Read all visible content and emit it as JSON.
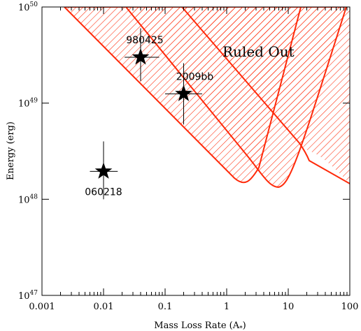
{
  "chart_data": {
    "type": "scatter",
    "xlabel": "Mass Loss Rate (A",
    "xlabel_sub": "*",
    "xlabel_end": ")",
    "ylabel": "Energy (erg)",
    "xscale": "log",
    "yscale": "log",
    "xlim": [
      0.001,
      100
    ],
    "ylim": [
      1e+47,
      1e+50
    ],
    "x_ticks": [
      {
        "value": 0.001,
        "label": "0.001"
      },
      {
        "value": 0.01,
        "label": "0.01"
      },
      {
        "value": 0.1,
        "label": "0.1"
      },
      {
        "value": 1,
        "label": "1"
      },
      {
        "value": 10,
        "label": "10"
      },
      {
        "value": 100,
        "label": "100"
      }
    ],
    "y_ticks": [
      {
        "value": 1e+47,
        "base": "10",
        "exp": "47"
      },
      {
        "value": 1e+48,
        "base": "10",
        "exp": "48"
      },
      {
        "value": 1e+49,
        "base": "10",
        "exp": "49"
      },
      {
        "value": 1e+50,
        "base": "10",
        "exp": "50"
      }
    ],
    "points": [
      {
        "name": "980425",
        "x": 0.04,
        "y": 3e+49,
        "xerr": [
          0.022,
          0.08
        ],
        "yerr": [
          1.7e+49,
          6e+49
        ]
      },
      {
        "name": "2009bb",
        "x": 0.2,
        "y": 1.25e+49,
        "xerr": [
          0.1,
          0.4
        ],
        "yerr": [
          6e+48,
          2.6e+49
        ]
      },
      {
        "name": "060218",
        "x": 0.01,
        "y": 1.95e+48,
        "xerr": [
          0.006,
          0.017
        ],
        "yerr": [
          1e+48,
          4e+48
        ]
      }
    ],
    "region_label": "Ruled Out",
    "colors": {
      "region": "#ff2a0a",
      "points": "#000000",
      "axes": "#000000"
    }
  }
}
